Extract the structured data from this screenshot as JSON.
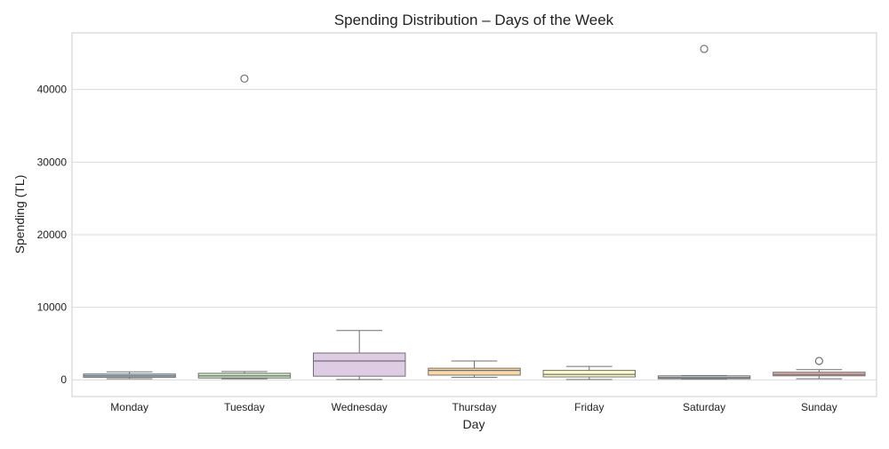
{
  "chart_data": {
    "type": "box",
    "title": "Spending Distribution – Days of the Week",
    "xlabel": "Day",
    "ylabel": "Spending (TL)",
    "ylim": [
      -2300,
      47800
    ],
    "yticks": [
      0,
      10000,
      20000,
      30000,
      40000
    ],
    "grid": "horizontal",
    "categories": [
      "Monday",
      "Tuesday",
      "Wednesday",
      "Thursday",
      "Friday",
      "Saturday",
      "Sunday"
    ],
    "box_colors": [
      "#b3cde3",
      "#ccebc5",
      "#decbe4",
      "#fed9a6",
      "#ffffcc",
      "#cfd8e3",
      "#fbb4ae"
    ],
    "boxes": [
      {
        "category": "Monday",
        "whisker_low": 150,
        "q1": 350,
        "median": 550,
        "q3": 800,
        "whisker_high": 1100,
        "outliers": []
      },
      {
        "category": "Tuesday",
        "whisker_low": 150,
        "q1": 250,
        "median": 550,
        "q3": 900,
        "whisker_high": 1150,
        "outliers": [
          41500
        ]
      },
      {
        "category": "Wednesday",
        "whisker_low": 50,
        "q1": 500,
        "median": 2600,
        "q3": 3700,
        "whisker_high": 6800,
        "outliers": []
      },
      {
        "category": "Thursday",
        "whisker_low": 350,
        "q1": 650,
        "median": 1300,
        "q3": 1600,
        "whisker_high": 2600,
        "outliers": []
      },
      {
        "category": "Friday",
        "whisker_low": 50,
        "q1": 400,
        "median": 750,
        "q3": 1300,
        "whisker_high": 1850,
        "outliers": []
      },
      {
        "category": "Saturday",
        "whisker_low": 100,
        "q1": 150,
        "median": 300,
        "q3": 550,
        "whisker_high": 600,
        "outliers": [
          45600
        ]
      },
      {
        "category": "Sunday",
        "whisker_low": 150,
        "q1": 550,
        "median": 750,
        "q3": 1050,
        "whisker_high": 1400,
        "outliers": [
          2600
        ]
      }
    ],
    "colors": {
      "grid": "#d9d9d9",
      "frame": "#cccccc",
      "box_edge": "#707070",
      "text": "#222222",
      "outlier_fill": "#ffffff"
    }
  }
}
